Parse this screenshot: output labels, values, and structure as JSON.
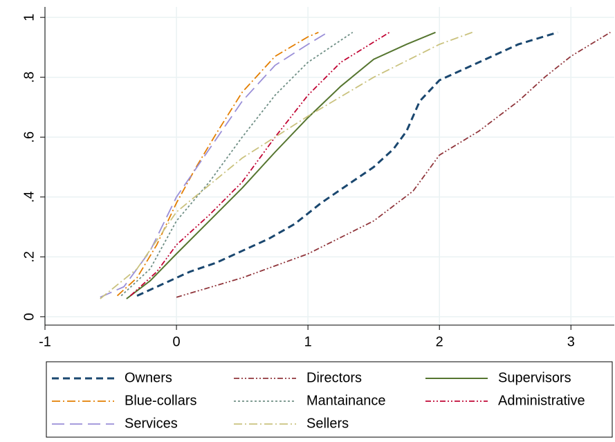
{
  "chart_data": {
    "type": "line",
    "xlim": [
      -1,
      3.33
    ],
    "xticks": [
      -1,
      0,
      1,
      2,
      3
    ],
    "ylim": [
      -0.028,
      1.035
    ],
    "yticks": [
      0,
      {
        "value": 0.2,
        "label": ".2"
      },
      {
        "value": 0.4,
        "label": ".4"
      },
      {
        "value": 0.6,
        "label": ".6"
      },
      {
        "value": 0.8,
        "label": ".8"
      },
      1
    ],
    "grid": true,
    "legend": "bottom",
    "series": [
      {
        "name": "Owners",
        "color": "#1a476f",
        "style": "dash",
        "x": [
          -0.3,
          -0.1,
          0.1,
          0.3,
          0.5,
          0.7,
          0.9,
          1.1,
          1.3,
          1.5,
          1.65,
          1.75,
          1.85,
          2.0,
          2.2,
          2.4,
          2.6,
          2.9
        ],
        "values": [
          0.07,
          0.11,
          0.15,
          0.18,
          0.22,
          0.26,
          0.31,
          0.38,
          0.44,
          0.5,
          0.56,
          0.62,
          0.72,
          0.79,
          0.83,
          0.87,
          0.91,
          0.95
        ]
      },
      {
        "name": "Directors",
        "color": "#90353b",
        "style": "dashdotdot",
        "x": [
          0,
          0.5,
          1,
          1.5,
          1.8,
          2,
          2.3,
          2.6,
          2.8,
          3,
          3.3
        ],
        "values": [
          0.065,
          0.13,
          0.21,
          0.32,
          0.42,
          0.54,
          0.62,
          0.72,
          0.8,
          0.87,
          0.95
        ]
      },
      {
        "name": "Supervisors",
        "color": "#55752f",
        "style": "solid",
        "x": [
          -0.38,
          -0.2,
          0,
          0.25,
          0.5,
          0.75,
          1,
          1.25,
          1.5,
          1.75,
          1.97
        ],
        "values": [
          0.06,
          0.12,
          0.21,
          0.32,
          0.43,
          0.55,
          0.665,
          0.77,
          0.86,
          0.91,
          0.95
        ]
      },
      {
        "name": "Blue-collars",
        "color": "#e37e00",
        "style": "dashdot",
        "x": [
          -0.45,
          -0.3,
          -0.15,
          0,
          0.15,
          0.3,
          0.5,
          0.75,
          1,
          1.08
        ],
        "values": [
          0.07,
          0.13,
          0.24,
          0.38,
          0.5,
          0.61,
          0.75,
          0.87,
          0.935,
          0.95
        ]
      },
      {
        "name": "Mantainance",
        "color": "#6e8e84",
        "style": "dot",
        "x": [
          -0.42,
          -0.2,
          0,
          0.25,
          0.5,
          0.75,
          1,
          1.34
        ],
        "values": [
          0.07,
          0.16,
          0.32,
          0.45,
          0.6,
          0.74,
          0.85,
          0.95
        ]
      },
      {
        "name": "Administrative",
        "color": "#c10534",
        "style": "dashdotdot",
        "x": [
          -0.35,
          -0.15,
          0,
          0.25,
          0.5,
          0.75,
          1,
          1.25,
          1.62
        ],
        "values": [
          0.07,
          0.15,
          0.24,
          0.34,
          0.45,
          0.6,
          0.74,
          0.85,
          0.95
        ]
      },
      {
        "name": "Services",
        "color": "#9a8fd8",
        "style": "longdash",
        "x": [
          -0.58,
          -0.4,
          -0.2,
          0,
          0.25,
          0.5,
          0.75,
          1,
          1.15
        ],
        "values": [
          0.065,
          0.1,
          0.22,
          0.4,
          0.56,
          0.72,
          0.84,
          0.91,
          0.95
        ]
      },
      {
        "name": "Sellers",
        "color": "#cac27e",
        "style": "dashdot",
        "x": [
          -0.58,
          -0.3,
          0,
          0.25,
          0.5,
          0.75,
          1,
          1.5,
          2,
          2.25
        ],
        "values": [
          0.06,
          0.16,
          0.35,
          0.44,
          0.53,
          0.6,
          0.67,
          0.8,
          0.91,
          0.95
        ]
      }
    ]
  }
}
